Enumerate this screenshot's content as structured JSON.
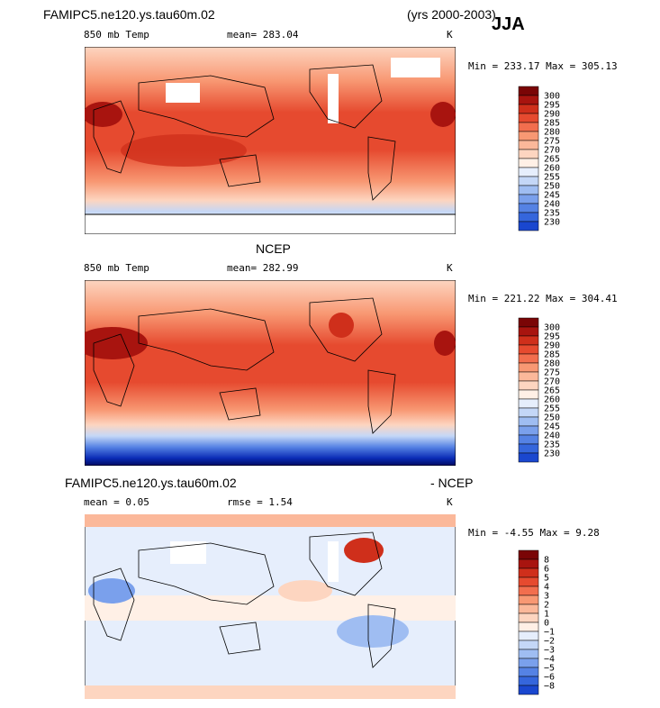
{
  "header": {
    "case_name": "FAMIPC5.ne120.ys.tau60m.02",
    "years": "(yrs 2000-2003)",
    "season": "JJA"
  },
  "colors": {
    "warm": [
      "#fff0e6",
      "#fdd5c0",
      "#fbb89a",
      "#f89873",
      "#f26e4e",
      "#e64a2f",
      "#cf2f1b",
      "#a8140f",
      "#7a0506"
    ],
    "cold": [
      "#e6eefc",
      "#c4d7f7",
      "#9fbdf2",
      "#7aa0ec",
      "#5582e4",
      "#3566dc",
      "#1a47cf",
      "#0a2bb5",
      "#00168c",
      "#000a60"
    ]
  },
  "panels": [
    {
      "title": "",
      "variable": "850 mb Temp",
      "stat_text": "mean= 283.04",
      "units": "K",
      "minmax": "Min = 233.17 Max = 305.13",
      "colorbar_labels": [
        "300",
        "295",
        "290",
        "285",
        "280",
        "275",
        "270",
        "265",
        "260",
        "255",
        "250",
        "245",
        "240",
        "235",
        "230"
      ]
    },
    {
      "title": "NCEP",
      "variable": "850 mb Temp",
      "stat_text": "mean= 282.99",
      "units": "K",
      "minmax": "Min = 221.22 Max = 304.41",
      "colorbar_labels": [
        "300",
        "295",
        "290",
        "285",
        "280",
        "275",
        "270",
        "265",
        "260",
        "255",
        "250",
        "245",
        "240",
        "235",
        "230"
      ]
    },
    {
      "title_left": "FAMIPC5.ne120.ys.tau60m.02",
      "title_right": "- NCEP",
      "stat_text": "mean =    0.05",
      "stat_text2": "rmse =    1.54",
      "units": "K",
      "minmax": "Min =   -4.55 Max =    9.28",
      "colorbar_labels": [
        "8",
        "6",
        "5",
        "4",
        "3",
        "2",
        "1",
        "0",
        "−1",
        "−2",
        "−3",
        "−4",
        "−5",
        "−6",
        "−8"
      ]
    }
  ],
  "chart_data": [
    {
      "type": "heatmap",
      "title": "FAMIPC5.ne120.ys.tau60m.02 850 mb Temp",
      "units": "K",
      "mean": 283.04,
      "min": 233.17,
      "max": 305.13,
      "levels": [
        230,
        235,
        240,
        245,
        250,
        255,
        260,
        265,
        270,
        275,
        280,
        285,
        290,
        295,
        300
      ],
      "map": "global lat-lon, Pacific-centered"
    },
    {
      "type": "heatmap",
      "title": "NCEP 850 mb Temp",
      "units": "K",
      "mean": 282.99,
      "min": 221.22,
      "max": 304.41,
      "levels": [
        230,
        235,
        240,
        245,
        250,
        255,
        260,
        265,
        270,
        275,
        280,
        285,
        290,
        295,
        300
      ],
      "map": "global lat-lon, Pacific-centered"
    },
    {
      "type": "heatmap",
      "title": "FAMIPC5.ne120.ys.tau60m.02 - NCEP",
      "units": "K",
      "mean": 0.05,
      "rmse": 1.54,
      "min": -4.55,
      "max": 9.28,
      "levels": [
        -8,
        -6,
        -5,
        -4,
        -3,
        -2,
        -1,
        0,
        1,
        2,
        3,
        4,
        5,
        6,
        8
      ],
      "map": "global lat-lon, Pacific-centered"
    }
  ]
}
